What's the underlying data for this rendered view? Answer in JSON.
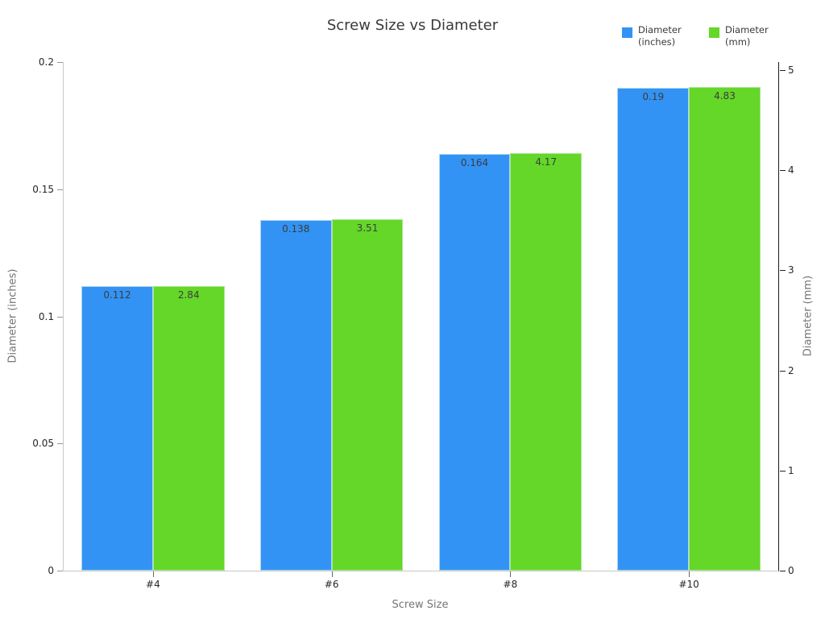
{
  "chart_data": {
    "type": "bar",
    "title": "Screw Size vs Diameter",
    "xlabel": "Screw Size",
    "categories": [
      "#4",
      "#6",
      "#8",
      "#10"
    ],
    "grid": false,
    "legend_position": "top-right",
    "left_axis": {
      "label": "Diameter (inches)",
      "ylim": [
        0,
        0.2
      ],
      "ticks": [
        "0",
        "0.05",
        "0.1",
        "0.15",
        "0.2"
      ]
    },
    "right_axis": {
      "label": "Diameter (mm)",
      "ylim": [
        0,
        5.08
      ],
      "ticks": [
        "0",
        "1",
        "2",
        "3",
        "4",
        "5"
      ]
    },
    "series": [
      {
        "name": "Diameter (inches)",
        "axis": "left",
        "color": "#3293f5",
        "edge_color": "#aed6ee",
        "values": [
          0.112,
          0.138,
          0.164,
          0.19
        ],
        "labels": [
          "0.112",
          "0.138",
          "0.164",
          "0.19"
        ]
      },
      {
        "name": "Diameter (mm)",
        "axis": "right",
        "color": "#64d728",
        "edge_color": "#a8e690",
        "values": [
          2.84,
          3.51,
          4.17,
          4.83
        ],
        "labels": [
          "2.84",
          "3.51",
          "4.17",
          "4.83"
        ]
      }
    ],
    "legend": {
      "entries": [
        {
          "label": "Diameter (inches)",
          "color": "#3293f5"
        },
        {
          "label": "Diameter (mm)",
          "color": "#64d728"
        }
      ]
    }
  }
}
